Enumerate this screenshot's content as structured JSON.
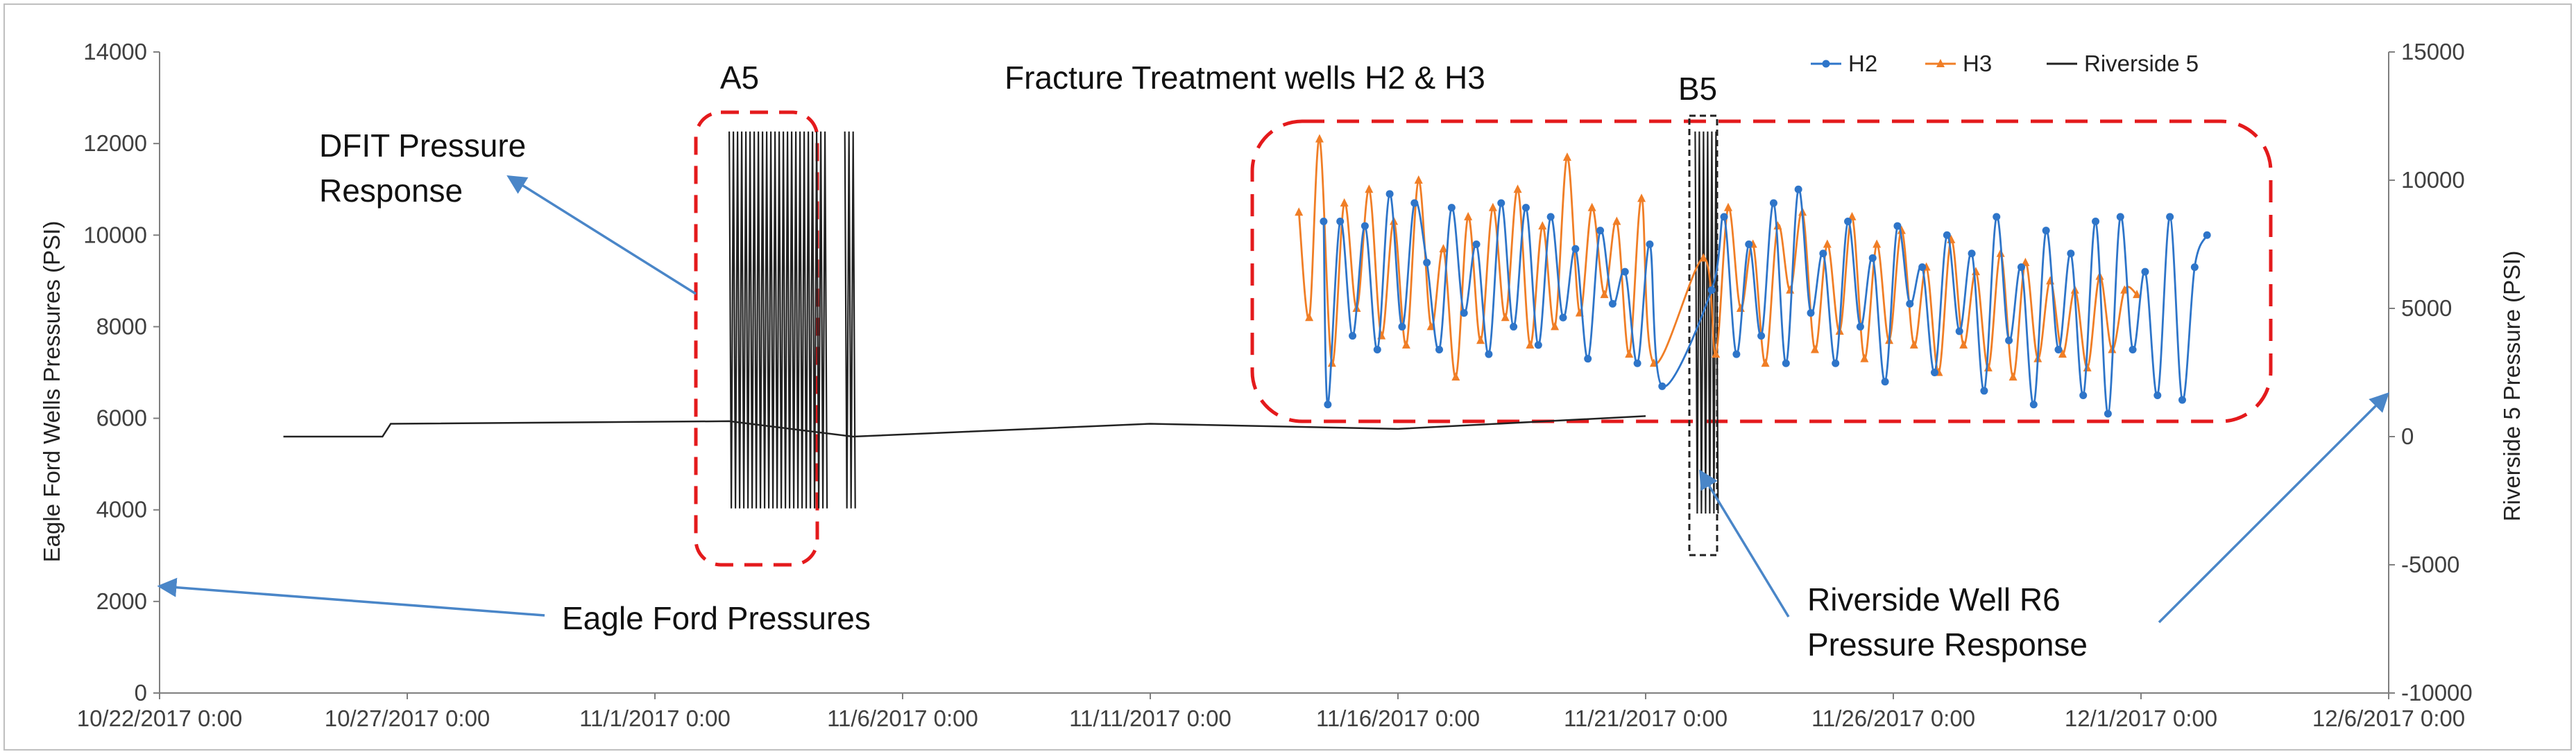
{
  "chart_data": {
    "type": "line",
    "title": "",
    "ylabel": "Eagle Ford Wells Pressures (PSI)",
    "y2label": "Riverside 5 Pressure (PSI)",
    "xlabel": "",
    "xlim": [
      "10/22/2017 0:00",
      "12/6/2017 0:00"
    ],
    "ylim": [
      0,
      14000
    ],
    "y2lim": [
      -10000,
      15000
    ],
    "x_ticks": [
      "10/22/2017 0:00",
      "10/27/2017 0:00",
      "11/1/2017 0:00",
      "11/6/2017 0:00",
      "11/11/2017 0:00",
      "11/16/2017 0:00",
      "11/21/2017 0:00",
      "11/26/2017 0:00",
      "12/1/2017 0:00",
      "12/6/2017 0:00"
    ],
    "y_ticks": [
      "0",
      "2000",
      "4000",
      "6000",
      "8000",
      "10000",
      "12000",
      "14000"
    ],
    "y2_ticks": [
      "-10000",
      "-5000",
      "0",
      "5000",
      "10000",
      "15000"
    ],
    "grid": false,
    "legend_position": "top-right",
    "legend": [
      "H2",
      "H3",
      "Riverside 5"
    ],
    "colors": {
      "H2": "#2e75c9",
      "H3": "#f07e26",
      "Riverside 5": "#222222",
      "annotation_box": "#e41a1c",
      "arrow": "#4a86c8"
    },
    "series": [
      {
        "name": "H2",
        "axis": "left",
        "x": [
          "11/14/2017 12:00",
          "11/14/2017 14:00",
          "11/14/2017 20:00",
          "11/15/2017 2:00",
          "11/15/2017 8:00",
          "11/15/2017 14:00",
          "11/15/2017 20:00",
          "11/16/2017 2:00",
          "11/16/2017 8:00",
          "11/16/2017 14:00",
          "11/16/2017 20:00",
          "11/17/2017 2:00",
          "11/17/2017 8:00",
          "11/17/2017 14:00",
          "11/17/2017 20:00",
          "11/18/2017 2:00",
          "11/18/2017 8:00",
          "11/18/2017 14:00",
          "11/18/2017 20:00",
          "11/19/2017 2:00",
          "11/19/2017 8:00",
          "11/19/2017 14:00",
          "11/19/2017 20:00",
          "11/20/2017 2:00",
          "11/20/2017 8:00",
          "11/20/2017 14:00",
          "11/20/2017 20:00",
          "11/21/2017 2:00",
          "11/21/2017 8:00",
          "11/22/2017 8:00",
          "11/22/2017 14:00",
          "11/22/2017 20:00",
          "11/23/2017 2:00",
          "11/23/2017 8:00",
          "11/23/2017 14:00",
          "11/23/2017 20:00",
          "11/24/2017 2:00",
          "11/24/2017 8:00",
          "11/24/2017 14:00",
          "11/24/2017 20:00",
          "11/25/2017 2:00",
          "11/25/2017 8:00",
          "11/25/2017 14:00",
          "11/25/2017 20:00",
          "11/26/2017 2:00",
          "11/26/2017 8:00",
          "11/26/2017 14:00",
          "11/26/2017 20:00",
          "11/27/2017 2:00",
          "11/27/2017 8:00",
          "11/27/2017 14:00",
          "11/27/2017 20:00",
          "11/28/2017 2:00",
          "11/28/2017 8:00",
          "11/28/2017 14:00",
          "11/28/2017 20:00",
          "11/29/2017 2:00",
          "11/29/2017 8:00",
          "11/29/2017 14:00",
          "11/29/2017 20:00",
          "11/30/2017 2:00",
          "11/30/2017 8:00",
          "11/30/2017 14:00",
          "11/30/2017 20:00",
          "12/1/2017 2:00",
          "12/1/2017 8:00",
          "12/1/2017 14:00",
          "12/1/2017 20:00",
          "12/2/2017 2:00",
          "12/2/2017 8:00"
        ],
        "values": [
          10300,
          6300,
          10300,
          7800,
          10200,
          7500,
          10900,
          8000,
          10700,
          9400,
          7500,
          10600,
          8300,
          9800,
          7400,
          10700,
          8000,
          10600,
          7600,
          10400,
          8200,
          9700,
          7300,
          10100,
          8500,
          9200,
          7200,
          9800,
          6700,
          8800,
          10400,
          7400,
          9800,
          7800,
          10700,
          7200,
          11000,
          8300,
          9600,
          7200,
          10300,
          8000,
          9500,
          6800,
          10200,
          8500,
          9300,
          7000,
          10000,
          7900,
          9600,
          6600,
          10400,
          7700,
          9300,
          6300,
          10100,
          7500,
          9600,
          6500,
          10300,
          6100,
          10400,
          7500,
          9200,
          6500,
          10400,
          6400,
          9300,
          10000
        ]
      },
      {
        "name": "H3",
        "axis": "left",
        "x": [
          "11/14/2017 0:00",
          "11/14/2017 5:00",
          "11/14/2017 10:00",
          "11/14/2017 16:00",
          "11/14/2017 22:00",
          "11/15/2017 4:00",
          "11/15/2017 10:00",
          "11/15/2017 16:00",
          "11/15/2017 22:00",
          "11/16/2017 4:00",
          "11/16/2017 10:00",
          "11/16/2017 16:00",
          "11/16/2017 22:00",
          "11/17/2017 4:00",
          "11/17/2017 10:00",
          "11/17/2017 16:00",
          "11/17/2017 22:00",
          "11/18/2017 4:00",
          "11/18/2017 10:00",
          "11/18/2017 16:00",
          "11/18/2017 22:00",
          "11/19/2017 4:00",
          "11/19/2017 10:00",
          "11/19/2017 16:00",
          "11/19/2017 22:00",
          "11/20/2017 4:00",
          "11/20/2017 10:00",
          "11/20/2017 16:00",
          "11/20/2017 22:00",
          "11/21/2017 4:00",
          "11/22/2017 4:00",
          "11/22/2017 10:00",
          "11/22/2017 16:00",
          "11/22/2017 22:00",
          "11/23/2017 4:00",
          "11/23/2017 10:00",
          "11/23/2017 16:00",
          "11/23/2017 22:00",
          "11/24/2017 4:00",
          "11/24/2017 10:00",
          "11/24/2017 16:00",
          "11/24/2017 22:00",
          "11/25/2017 4:00",
          "11/25/2017 10:00",
          "11/25/2017 16:00",
          "11/25/2017 22:00",
          "11/26/2017 4:00",
          "11/26/2017 10:00",
          "11/26/2017 16:00",
          "11/26/2017 22:00",
          "11/27/2017 4:00",
          "11/27/2017 10:00",
          "11/27/2017 16:00",
          "11/27/2017 22:00",
          "11/28/2017 4:00",
          "11/28/2017 10:00",
          "11/28/2017 16:00",
          "11/28/2017 22:00",
          "11/29/2017 4:00",
          "11/29/2017 10:00",
          "11/29/2017 16:00",
          "11/29/2017 22:00",
          "11/30/2017 4:00",
          "11/30/2017 10:00",
          "11/30/2017 16:00",
          "11/30/2017 22:00"
        ],
        "values": [
          10500,
          8200,
          12100,
          7200,
          10700,
          8400,
          11000,
          7800,
          10300,
          7600,
          11200,
          8000,
          9700,
          6900,
          10400,
          7700,
          10600,
          8200,
          11000,
          7600,
          10200,
          8000,
          11700,
          8300,
          10600,
          8700,
          10300,
          7400,
          10800,
          7200,
          9500,
          7400,
          10600,
          8400,
          9800,
          7200,
          10200,
          8800,
          10500,
          7500,
          9800,
          7900,
          10400,
          7300,
          9800,
          7700,
          10100,
          7600,
          9300,
          7000,
          9900,
          7600,
          9200,
          7100,
          9600,
          6900,
          9400,
          7300,
          9000,
          7400,
          8800,
          7100,
          9100,
          7500,
          8800,
          8700
        ]
      },
      {
        "name": "Riverside 5",
        "axis": "right",
        "baseline": [
          {
            "x": "10/24/2017 12:00",
            "y": 0
          },
          {
            "x": "10/26/2017 12:00",
            "y": 0
          },
          {
            "x": "10/26/2017 16:00",
            "y": 500
          },
          {
            "x": "11/2/2017 12:00",
            "y": 600
          },
          {
            "x": "11/5/2017 0:00",
            "y": 0
          },
          {
            "x": "11/11/2017 0:00",
            "y": 500
          },
          {
            "x": "11/16/2017 0:00",
            "y": 300
          },
          {
            "x": "11/21/2017 0:00",
            "y": 800
          }
        ],
        "oscillation_bursts": [
          {
            "start": "11/2/2017 12:00",
            "end": "11/4/2017 12:00",
            "min": -2800,
            "max": 11900
          },
          {
            "start": "11/4/2017 20:00",
            "end": "11/5/2017 2:00",
            "min": -2800,
            "max": 11900
          },
          {
            "start": "11/22/2017 0:00",
            "end": "11/22/2017 12:00",
            "min": -3000,
            "max": 11900
          }
        ]
      }
    ],
    "annotations": [
      {
        "label": "A5"
      },
      {
        "label": "B5"
      },
      {
        "label_lines": [
          "Fracture Treatment wells H2 & H3"
        ]
      },
      {
        "label_lines": [
          "DFIT Pressure",
          "Response"
        ]
      },
      {
        "label_lines": [
          "Eagle Ford Pressures"
        ]
      },
      {
        "label_lines": [
          "Riverside Well R6",
          "Pressure Response"
        ]
      }
    ]
  }
}
